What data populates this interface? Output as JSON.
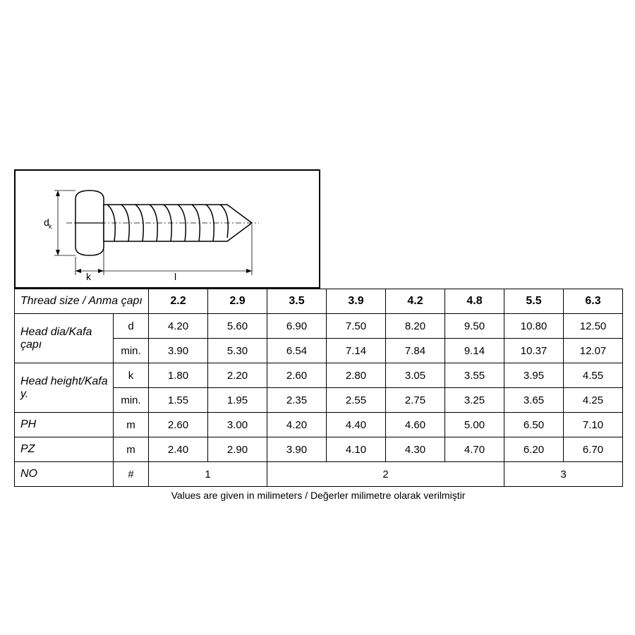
{
  "diagram": {
    "dim_label_d": "d",
    "dim_label_k": "k",
    "dim_label_l": "l"
  },
  "table": {
    "header_label": "Thread size  / Anma çapı",
    "sizes": [
      "2.2",
      "2.9",
      "3.5",
      "3.9",
      "4.2",
      "4.8",
      "5.5",
      "6.3"
    ],
    "rows": [
      {
        "label": "Head dia/Kafa çapı",
        "sub": [
          {
            "sym": "d",
            "vals": [
              "4.20",
              "5.60",
              "6.90",
              "7.50",
              "8.20",
              "9.50",
              "10.80",
              "12.50"
            ]
          },
          {
            "sym": "min.",
            "vals": [
              "3.90",
              "5.30",
              "6.54",
              "7.14",
              "7.84",
              "9.14",
              "10.37",
              "12.07"
            ]
          }
        ]
      },
      {
        "label": "Head height/Kafa y.",
        "sub": [
          {
            "sym": "k",
            "vals": [
              "1.80",
              "2.20",
              "2.60",
              "2.80",
              "3.05",
              "3.55",
              "3.95",
              "4.55"
            ]
          },
          {
            "sym": "min.",
            "vals": [
              "1.55",
              "1.95",
              "2.35",
              "2.55",
              "2.75",
              "3.25",
              "3.65",
              "4.25"
            ]
          }
        ]
      },
      {
        "label": "PH",
        "sub": [
          {
            "sym": "m",
            "vals": [
              "2.60",
              "3.00",
              "4.20",
              "4.40",
              "4.60",
              "5.00",
              "6.50",
              "7.10"
            ]
          }
        ]
      },
      {
        "label": "PZ",
        "sub": [
          {
            "sym": "m",
            "vals": [
              "2.40",
              "2.90",
              "3.90",
              "4.10",
              "4.30",
              "4.70",
              "6.20",
              "6.70"
            ]
          }
        ]
      }
    ],
    "no_row": {
      "label": "NO",
      "sym": "#",
      "groups": [
        {
          "span": 2,
          "val": "1"
        },
        {
          "span": 4,
          "val": "2"
        },
        {
          "span": 2,
          "val": "3"
        }
      ]
    }
  },
  "footnote": "Values are given in milimeters / Değerler milimetre olarak verilmiştir",
  "style": {
    "border_color": "#000000",
    "text_color": "#000000",
    "bg_color": "#ffffff",
    "font_size_cell": 15,
    "font_size_header": 16,
    "font_size_footnote": 14
  }
}
